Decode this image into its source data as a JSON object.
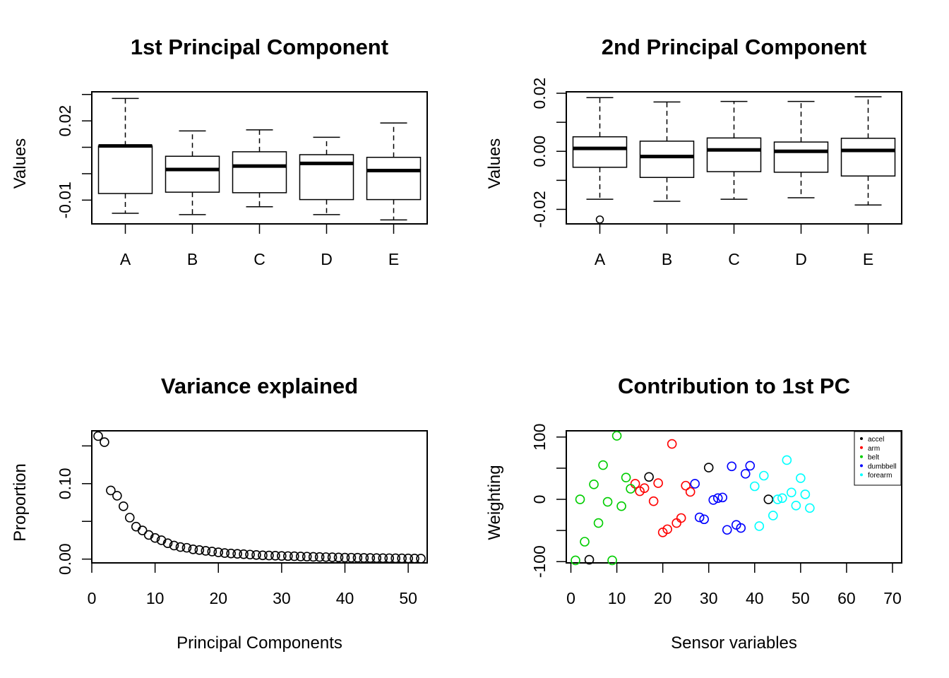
{
  "chart_data": [
    {
      "type": "box",
      "title": "1st Principal Component",
      "xlabel": "",
      "ylabel": "Values",
      "ylim": [
        -0.019,
        0.031
      ],
      "yticks": [
        -0.01,
        0.0,
        0.01,
        0.02,
        0.03
      ],
      "ytick_labels": {
        "-0.01": "-0.01",
        "0.02": "0.02"
      },
      "categories": [
        "A",
        "B",
        "C",
        "D",
        "E"
      ],
      "boxes": [
        {
          "lower_whisker": -0.015,
          "q1": -0.0075,
          "median": 0.0105,
          "q3": 0.0105,
          "upper_whisker": 0.0285
        },
        {
          "lower_whisker": -0.0155,
          "q1": -0.007,
          "median": 0.0016,
          "q3": 0.0066,
          "upper_whisker": 0.0162
        },
        {
          "lower_whisker": -0.0125,
          "q1": -0.0072,
          "median": 0.0029,
          "q3": 0.0083,
          "upper_whisker": 0.0166
        },
        {
          "lower_whisker": -0.0155,
          "q1": -0.0098,
          "median": 0.0039,
          "q3": 0.0072,
          "upper_whisker": 0.0138
        },
        {
          "lower_whisker": -0.0175,
          "q1": -0.0098,
          "median": 0.0012,
          "q3": 0.0062,
          "upper_whisker": 0.0192
        }
      ],
      "outliers": []
    },
    {
      "type": "box",
      "title": "2nd Principal Component",
      "xlabel": "",
      "ylabel": "Values",
      "ylim": [
        -0.025,
        0.0205
      ],
      "yticks": [
        -0.02,
        -0.01,
        0.0,
        0.01,
        0.02
      ],
      "ytick_labels": {
        "-0.02": "-0.02",
        "0.00": "0.00",
        "0.02": "0.02"
      },
      "categories": [
        "A",
        "B",
        "C",
        "D",
        "E"
      ],
      "boxes": [
        {
          "lower_whisker": -0.0165,
          "q1": -0.0055,
          "median": 0.001,
          "q3": 0.005,
          "upper_whisker": 0.0185
        },
        {
          "lower_whisker": -0.0172,
          "q1": -0.009,
          "median": -0.0018,
          "q3": 0.0035,
          "upper_whisker": 0.017
        },
        {
          "lower_whisker": -0.0165,
          "q1": -0.007,
          "median": 0.0005,
          "q3": 0.0046,
          "upper_whisker": 0.0172
        },
        {
          "lower_whisker": -0.016,
          "q1": -0.0072,
          "median": 0.0,
          "q3": 0.0032,
          "upper_whisker": 0.0172
        },
        {
          "lower_whisker": -0.0185,
          "q1": -0.0085,
          "median": 0.0003,
          "q3": 0.0045,
          "upper_whisker": 0.0188
        }
      ],
      "outliers": [
        {
          "category": "A",
          "value": -0.0235
        }
      ]
    },
    {
      "type": "scatter",
      "title": "Variance explained",
      "xlabel": "Principal Components",
      "ylabel": "Proportion",
      "xlim": [
        0,
        53
      ],
      "ylim": [
        -0.005,
        0.17
      ],
      "xticks": [
        0,
        10,
        20,
        30,
        40,
        50
      ],
      "yticks": [
        0.0,
        0.05,
        0.1,
        0.15
      ],
      "ytick_labels": {
        "0.00": "0.00",
        "0.10": "0.10"
      },
      "x": [
        1,
        2,
        3,
        4,
        5,
        6,
        7,
        8,
        9,
        10,
        11,
        12,
        13,
        14,
        15,
        16,
        17,
        18,
        19,
        20,
        21,
        22,
        23,
        24,
        25,
        26,
        27,
        28,
        29,
        30,
        31,
        32,
        33,
        34,
        35,
        36,
        37,
        38,
        39,
        40,
        41,
        42,
        43,
        44,
        45,
        46,
        47,
        48,
        49,
        50,
        51,
        52
      ],
      "y": [
        0.163,
        0.155,
        0.091,
        0.084,
        0.07,
        0.055,
        0.043,
        0.038,
        0.032,
        0.028,
        0.025,
        0.021,
        0.018,
        0.016,
        0.015,
        0.013,
        0.012,
        0.011,
        0.01,
        0.009,
        0.008,
        0.0075,
        0.007,
        0.0065,
        0.006,
        0.0055,
        0.005,
        0.0048,
        0.0045,
        0.0042,
        0.004,
        0.0038,
        0.0035,
        0.0033,
        0.003,
        0.0028,
        0.0026,
        0.0024,
        0.0022,
        0.002,
        0.0019,
        0.0018,
        0.0016,
        0.0015,
        0.0014,
        0.0013,
        0.0012,
        0.0011,
        0.001,
        0.0009,
        0.0008,
        0.0007
      ]
    },
    {
      "type": "scatter",
      "title": "Contribution to 1st PC",
      "xlabel": "Sensor variables",
      "ylabel": "Weighting",
      "xlim": [
        -1,
        72
      ],
      "ylim": [
        -102,
        110
      ],
      "xticks": [
        0,
        10,
        20,
        30,
        40,
        50,
        60,
        70
      ],
      "yticks": [
        -100,
        -50,
        0,
        50,
        100
      ],
      "ytick_labels": {
        "-100": "-100",
        "0": "0",
        "100": "100"
      },
      "legend": {
        "position": "top-right",
        "entries": [
          "accel",
          "arm",
          "belt",
          "dumbbell",
          "forearm"
        ]
      },
      "series": [
        {
          "name": "accel",
          "color": "#000000",
          "points": [
            [
              4,
              -97
            ],
            [
              17,
              36
            ],
            [
              30,
              51
            ],
            [
              43,
              0
            ]
          ]
        },
        {
          "name": "arm",
          "color": "#ff0000",
          "points": [
            [
              14,
              25
            ],
            [
              15,
              13
            ],
            [
              16,
              18
            ],
            [
              18,
              -3
            ],
            [
              19,
              26
            ],
            [
              20,
              -53
            ],
            [
              21,
              -48
            ],
            [
              22,
              89
            ],
            [
              23,
              -38
            ],
            [
              24,
              -30
            ],
            [
              25,
              22
            ],
            [
              26,
              12
            ]
          ]
        },
        {
          "name": "belt",
          "color": "#00cd00",
          "points": [
            [
              1,
              -98
            ],
            [
              2,
              0
            ],
            [
              3,
              -68
            ],
            [
              5,
              24
            ],
            [
              6,
              -38
            ],
            [
              7,
              55
            ],
            [
              8,
              -4
            ],
            [
              9,
              -98
            ],
            [
              10,
              102
            ],
            [
              11,
              -11
            ],
            [
              12,
              35
            ],
            [
              13,
              17
            ]
          ]
        },
        {
          "name": "dumbbell",
          "color": "#0000ff",
          "points": [
            [
              27,
              25
            ],
            [
              28,
              -29
            ],
            [
              29,
              -32
            ],
            [
              31,
              -1
            ],
            [
              32,
              2
            ],
            [
              33,
              3
            ],
            [
              34,
              -49
            ],
            [
              35,
              53
            ],
            [
              36,
              -41
            ],
            [
              37,
              -46
            ],
            [
              38,
              41
            ],
            [
              39,
              54
            ]
          ]
        },
        {
          "name": "forearm",
          "color": "#00ffff",
          "points": [
            [
              40,
              21
            ],
            [
              41,
              -43
            ],
            [
              42,
              38
            ],
            [
              44,
              -26
            ],
            [
              45,
              0
            ],
            [
              46,
              2
            ],
            [
              47,
              63
            ],
            [
              48,
              11
            ],
            [
              49,
              -10
            ],
            [
              50,
              34
            ],
            [
              51,
              8
            ],
            [
              52,
              -14
            ]
          ]
        }
      ]
    }
  ]
}
